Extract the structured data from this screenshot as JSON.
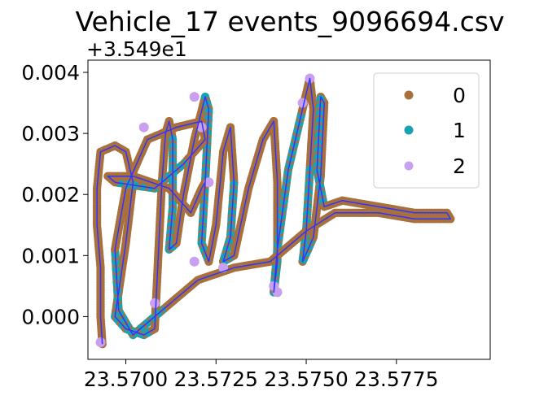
{
  "chart_data": {
    "type": "scatter",
    "title": "Vehicle_17 events_9096694.csv",
    "xlabel": "",
    "ylabel": "",
    "y_offset_label": "+3.549e1",
    "x_ticks": [
      "23.5700",
      "23.5725",
      "23.5750",
      "23.5775"
    ],
    "y_ticks": [
      "0.000",
      "0.001",
      "0.002",
      "0.003",
      "0.004"
    ],
    "xlim": [
      23.56895,
      23.5801
    ],
    "ylim": [
      -0.0007,
      0.0042
    ],
    "grid": false,
    "legend_position": "top-right",
    "colors": {
      "0": "#a8703c",
      "1": "#17a3b5",
      "2": "#c9a0ef",
      "line": "#3333ff"
    },
    "legend": [
      "0",
      "1",
      "2"
    ],
    "track": [
      [
        23.56935,
        -0.00045
      ],
      [
        23.5693,
        0.0
      ],
      [
        23.5693,
        0.0008
      ],
      [
        23.5692,
        0.0015
      ],
      [
        23.5692,
        0.0021
      ],
      [
        23.5693,
        0.0027
      ],
      [
        23.5697,
        0.0028
      ],
      [
        23.57,
        0.0027
      ],
      [
        23.5702,
        0.0022
      ],
      [
        23.57,
        0.0012
      ],
      [
        23.5697,
        0.0
      ],
      [
        23.57,
        -0.0002
      ],
      [
        23.5705,
        -0.0003
      ],
      [
        23.5708,
        -0.0002
      ],
      [
        23.5709,
        0.001
      ],
      [
        23.571,
        0.0022
      ],
      [
        23.5711,
        0.003
      ],
      [
        23.5712,
        0.0032
      ],
      [
        23.5713,
        0.0029
      ],
      [
        23.5713,
        0.0018
      ],
      [
        23.5712,
        0.0011
      ],
      [
        23.5714,
        0.0012
      ],
      [
        23.5716,
        0.002
      ],
      [
        23.5719,
        0.0029
      ],
      [
        23.5722,
        0.0036
      ],
      [
        23.5723,
        0.0034
      ],
      [
        23.5722,
        0.0022
      ],
      [
        23.5721,
        0.0012
      ],
      [
        23.5723,
        0.0009
      ],
      [
        23.5725,
        0.0015
      ],
      [
        23.5727,
        0.0027
      ],
      [
        23.5729,
        0.0031
      ],
      [
        23.573,
        0.0022
      ],
      [
        23.5729,
        0.0013
      ],
      [
        23.5727,
        0.0009
      ],
      [
        23.573,
        0.001
      ],
      [
        23.5734,
        0.0021
      ],
      [
        23.5738,
        0.0029
      ],
      [
        23.5741,
        0.0032
      ],
      [
        23.5742,
        0.0022
      ],
      [
        23.5742,
        0.0009
      ],
      [
        23.5741,
        0.0004
      ],
      [
        23.5742,
        0.0011
      ],
      [
        23.5745,
        0.0024
      ],
      [
        23.5749,
        0.0034
      ],
      [
        23.5751,
        0.0039
      ],
      [
        23.5752,
        0.0034
      ],
      [
        23.5751,
        0.0024
      ],
      [
        23.575,
        0.0014
      ],
      [
        23.5749,
        0.0009
      ],
      [
        23.5752,
        0.0013
      ],
      [
        23.5754,
        0.0023
      ],
      [
        23.5755,
        0.0035
      ],
      [
        23.5754,
        0.0036
      ],
      [
        23.5753,
        0.0024
      ],
      [
        23.5755,
        0.0018
      ],
      [
        23.576,
        0.0019
      ],
      [
        23.577,
        0.0018
      ],
      [
        23.578,
        0.0017
      ],
      [
        23.5789,
        0.0017
      ],
      [
        23.579,
        0.0016
      ],
      [
        23.578,
        0.0016
      ],
      [
        23.577,
        0.0017
      ],
      [
        23.5758,
        0.0017
      ],
      [
        23.575,
        0.0014
      ],
      [
        23.574,
        0.0009
      ],
      [
        23.573,
        0.0008
      ],
      [
        23.572,
        0.0006
      ],
      [
        23.571,
        0.0001
      ],
      [
        23.5702,
        -0.0003
      ],
      [
        23.5698,
        0.0001
      ],
      [
        23.5697,
        0.0011
      ],
      [
        23.57,
        0.0021
      ],
      [
        23.5706,
        0.0029
      ],
      [
        23.5714,
        0.0031
      ],
      [
        23.5721,
        0.0032
      ],
      [
        23.5722,
        0.0029
      ],
      [
        23.5716,
        0.0025
      ],
      [
        23.5708,
        0.0021
      ],
      [
        23.5697,
        0.0022
      ],
      [
        23.5695,
        0.0023
      ],
      [
        23.5702,
        0.0023
      ],
      [
        23.5712,
        0.0021
      ],
      [
        23.5718,
        0.0017
      ],
      [
        23.5721,
        0.0021
      ],
      [
        23.5722,
        0.0022
      ]
    ],
    "label1_segments": [
      [
        10,
        13
      ],
      [
        18,
        21
      ],
      [
        24,
        28
      ],
      [
        32,
        35
      ],
      [
        40,
        44
      ],
      [
        47,
        50
      ],
      [
        53,
        55
      ],
      [
        68,
        71
      ],
      [
        77,
        79
      ]
    ],
    "label2_points": [
      [
        23.5693,
        -0.00042
      ],
      [
        23.5708,
        0.00022
      ],
      [
        23.5705,
        0.0031
      ],
      [
        23.5719,
        0.0036
      ],
      [
        23.5721,
        0.0031
      ],
      [
        23.5723,
        0.0022
      ],
      [
        23.5719,
        0.0009
      ],
      [
        23.5742,
        0.0004
      ],
      [
        23.5749,
        0.0035
      ],
      [
        23.5751,
        0.0039
      ],
      [
        23.5727,
        0.0008
      ],
      [
        23.5741,
        0.0005
      ]
    ]
  }
}
